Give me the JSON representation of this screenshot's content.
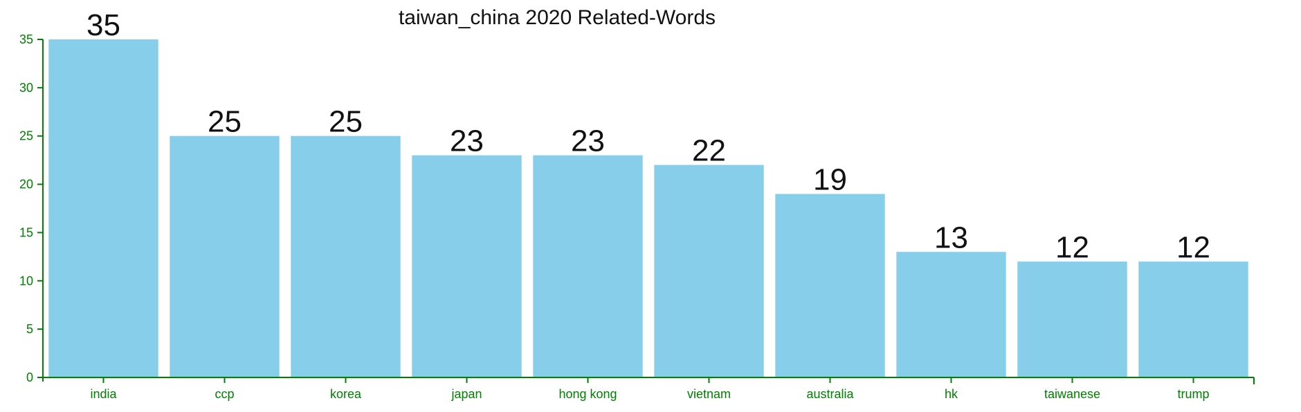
{
  "chart_data": {
    "type": "bar",
    "title": "taiwan_china 2020 Related-Words",
    "xlabel": "",
    "ylabel": "",
    "categories": [
      "india",
      "ccp",
      "korea",
      "japan",
      "hong kong",
      "vietnam",
      "australia",
      "hk",
      "taiwanese",
      "trump"
    ],
    "values": [
      35,
      25,
      25,
      23,
      23,
      22,
      19,
      13,
      12,
      12
    ],
    "ylim": [
      0,
      35
    ],
    "yticks": [
      0,
      5,
      10,
      15,
      20,
      25,
      30,
      35
    ],
    "data_labels": true,
    "grid": false,
    "legend": "none",
    "bar_color": "#87ceeb",
    "axis_color": "#008000",
    "label_color": "#111111"
  }
}
